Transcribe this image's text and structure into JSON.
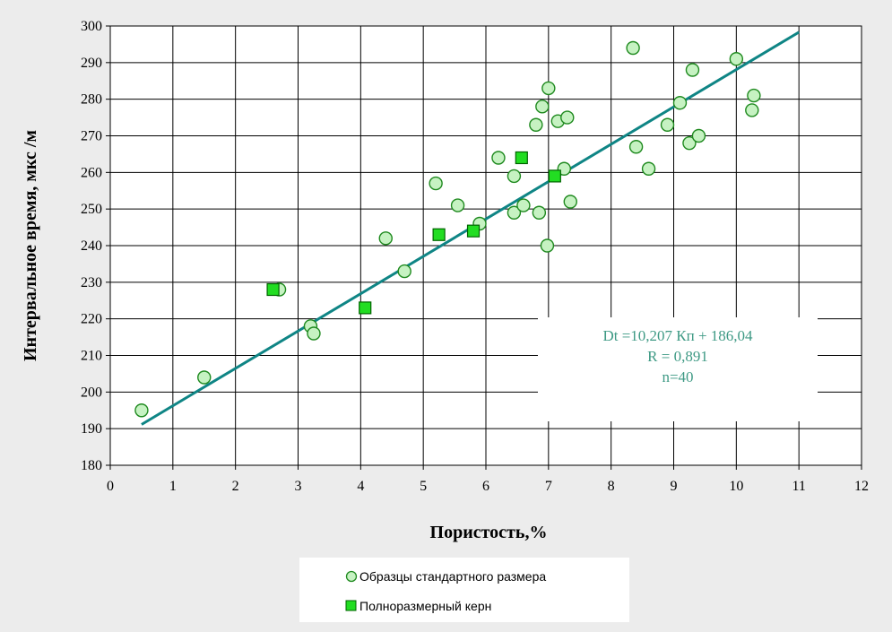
{
  "chart_data": {
    "type": "scatter",
    "xlabel": "Пористость,%",
    "ylabel": "Интервальное  время, мкс /м",
    "xlim": [
      0,
      12
    ],
    "ylim": [
      180,
      300
    ],
    "x_ticks": [
      "0",
      "1",
      "2",
      "3",
      "4",
      "5",
      "6",
      "7",
      "8",
      "9",
      "10",
      "11",
      "12"
    ],
    "y_ticks": [
      "180",
      "190",
      "200",
      "210",
      "220",
      "230",
      "240",
      "250",
      "260",
      "270",
      "280",
      "290",
      "300"
    ],
    "grid": true,
    "legend_position": "bottom-center",
    "series": [
      {
        "name": "Образцы стандартного размера",
        "marker": "circle",
        "fill": "#c6f2c2",
        "stroke": "#1f8a1f",
        "points": [
          [
            0.5,
            195
          ],
          [
            1.5,
            204
          ],
          [
            2.7,
            228
          ],
          [
            3.2,
            218
          ],
          [
            3.25,
            216
          ],
          [
            4.4,
            242
          ],
          [
            4.7,
            233
          ],
          [
            5.2,
            257
          ],
          [
            5.55,
            251
          ],
          [
            5.9,
            246
          ],
          [
            6.2,
            264
          ],
          [
            6.45,
            259
          ],
          [
            6.45,
            249
          ],
          [
            6.6,
            251
          ],
          [
            6.8,
            273
          ],
          [
            6.85,
            249
          ],
          [
            6.9,
            278
          ],
          [
            7.0,
            283
          ],
          [
            6.98,
            240
          ],
          [
            7.15,
            274
          ],
          [
            7.25,
            261
          ],
          [
            7.3,
            275
          ],
          [
            7.35,
            252
          ],
          [
            8.35,
            294
          ],
          [
            8.4,
            267
          ],
          [
            8.6,
            261
          ],
          [
            8.9,
            273
          ],
          [
            9.1,
            279
          ],
          [
            9.25,
            268
          ],
          [
            9.3,
            288
          ],
          [
            9.4,
            270
          ],
          [
            10.0,
            291
          ],
          [
            10.25,
            277
          ],
          [
            10.28,
            281
          ]
        ]
      },
      {
        "name": "Полноразмерный керн",
        "marker": "square",
        "fill": "#22dd22",
        "stroke": "#006400",
        "points": [
          [
            2.6,
            228
          ],
          [
            4.07,
            223
          ],
          [
            5.25,
            243
          ],
          [
            5.8,
            244
          ],
          [
            6.57,
            264
          ],
          [
            7.1,
            259
          ]
        ]
      }
    ],
    "trendline": {
      "slope": 10.207,
      "intercept": 186.04,
      "x_start": 0.5,
      "x_end": 11.0,
      "color": "#0f8585"
    },
    "annotation": {
      "lines": [
        "Dt =10,207 Кп + 186,04",
        "R = 0,891",
        "n=40"
      ]
    }
  }
}
